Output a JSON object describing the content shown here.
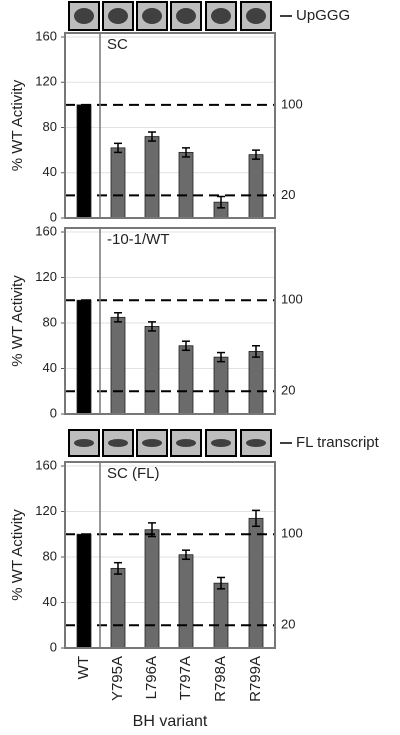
{
  "chart_data": [
    {
      "type": "bar",
      "title": "SC",
      "band_label": "UpGGG",
      "ylabel": "% WT Activity",
      "categories": [
        null,
        null,
        null,
        null,
        null,
        null
      ],
      "values": [
        100,
        62,
        72,
        58,
        14,
        56
      ],
      "errors": [
        null,
        4,
        4,
        4,
        5,
        4
      ],
      "colors": [
        "#000000",
        "#6b6b6b",
        "#6b6b6b",
        "#6b6b6b",
        "#6b6b6b",
        "#6b6b6b"
      ],
      "ref_lines": [
        100,
        20
      ],
      "ylim": [
        0,
        160
      ],
      "yticks": [
        0,
        40,
        80,
        120,
        160
      ],
      "grid": true
    },
    {
      "type": "bar",
      "title": "-10-1/WT",
      "ylabel": "% WT Activity",
      "categories": [
        null,
        null,
        null,
        null,
        null,
        null
      ],
      "values": [
        100,
        85,
        77,
        60,
        50,
        55
      ],
      "errors": [
        null,
        4,
        4,
        4,
        4,
        5
      ],
      "colors": [
        "#000000",
        "#6b6b6b",
        "#6b6b6b",
        "#6b6b6b",
        "#6b6b6b",
        "#6b6b6b"
      ],
      "ref_lines": [
        100,
        20
      ],
      "ylim": [
        0,
        160
      ],
      "yticks": [
        0,
        40,
        80,
        120,
        160
      ],
      "grid": true
    },
    {
      "type": "bar",
      "title": "SC (FL)",
      "band_label": "FL transcript",
      "ylabel": "% WT Activity",
      "xlabel": "BH variant",
      "categories": [
        "WT",
        "Y795A",
        "L796A",
        "T797A",
        "R798A",
        "R799A"
      ],
      "values": [
        100,
        70,
        104,
        82,
        57,
        114
      ],
      "errors": [
        null,
        5,
        6,
        4,
        5,
        7
      ],
      "colors": [
        "#000000",
        "#6b6b6b",
        "#6b6b6b",
        "#6b6b6b",
        "#6b6b6b",
        "#6b6b6b"
      ],
      "ref_lines": [
        100,
        20
      ],
      "ylim": [
        0,
        160
      ],
      "yticks": [
        0,
        40,
        80,
        120,
        160
      ],
      "grid": true
    }
  ]
}
